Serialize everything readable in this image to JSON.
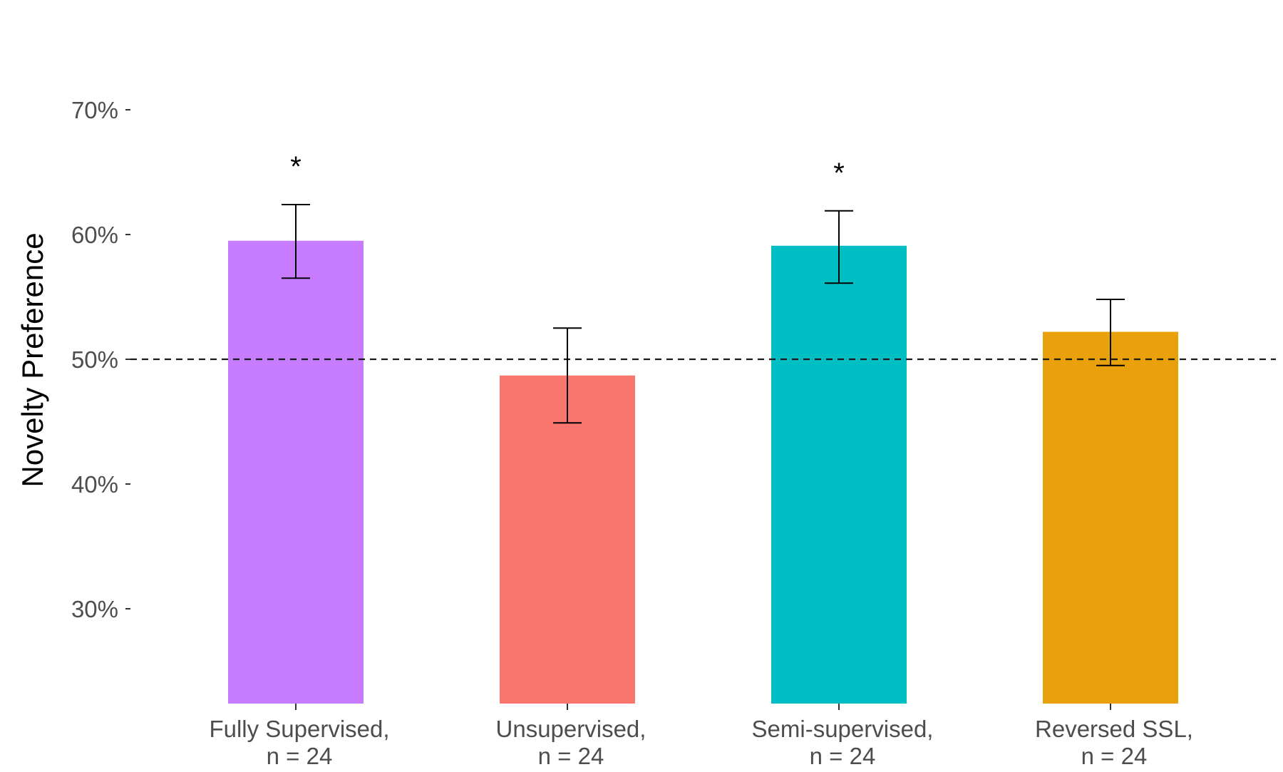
{
  "chart_data": {
    "type": "bar",
    "title": "",
    "xlabel": "",
    "ylabel": "Novelty Preference",
    "ylim": [
      22.7,
      70
    ],
    "yticks": [
      30,
      40,
      50,
      60,
      70
    ],
    "ytick_labels": [
      "30%",
      "40%",
      "50%",
      "60%",
      "70%"
    ],
    "categories": [
      [
        "Fully Supervised,",
        "n = 24"
      ],
      [
        "Unsupervised,",
        "n = 24"
      ],
      [
        "Semi-supervised,",
        "n = 24"
      ],
      [
        "Reversed SSL,",
        "n = 24"
      ]
    ],
    "values": [
      59.5,
      48.7,
      59.1,
      52.2
    ],
    "error_upper": [
      62.4,
      52.5,
      61.9,
      54.8
    ],
    "error_lower": [
      56.5,
      44.9,
      56.1,
      49.5
    ],
    "significance": [
      "*",
      "",
      "*",
      ""
    ],
    "reference_line": 50,
    "colors": [
      "#C77CFF",
      "#F8766D",
      "#00BFC4",
      "#E8A10A"
    ],
    "grid": false
  }
}
